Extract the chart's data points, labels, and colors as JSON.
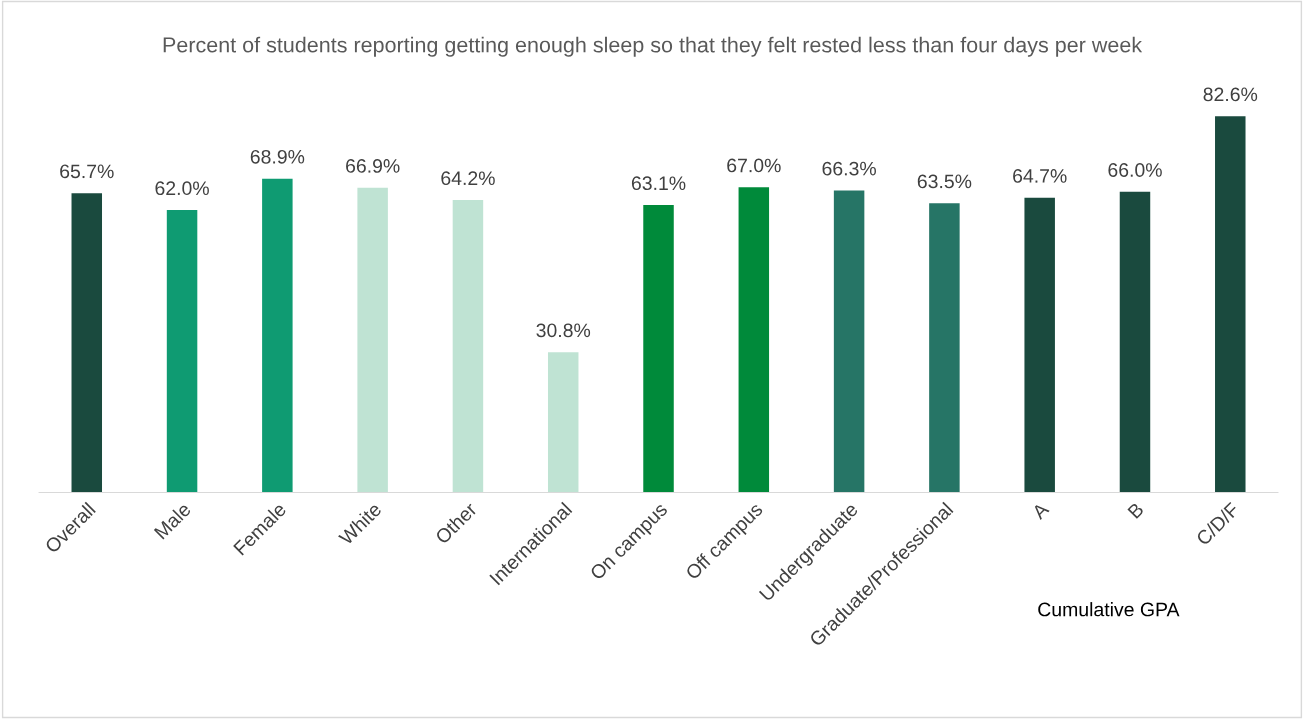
{
  "chart_data": {
    "type": "bar",
    "title": "Percent of students reporting getting enough sleep so that they felt rested less than four days per week",
    "categories": [
      "Overall",
      "Male",
      "Female",
      "White",
      "Other",
      "International",
      "On campus",
      "Off campus",
      "Undergraduate",
      "Graduate/Professional",
      "A",
      "B",
      "C/D/F"
    ],
    "values": [
      65.7,
      62.0,
      68.9,
      66.9,
      64.2,
      30.8,
      63.1,
      67.0,
      66.3,
      63.5,
      64.7,
      66.0,
      82.6
    ],
    "colors": [
      "#1a4a3e",
      "#0f9b72",
      "#0f9b72",
      "#bfe3d3",
      "#bfe3d3",
      "#bfe3d3",
      "#008a3a",
      "#008a3a",
      "#267566",
      "#267566",
      "#1a4a3e",
      "#1a4a3e",
      "#1a4a3e"
    ],
    "value_labels": [
      "65.7%",
      "62.0%",
      "68.9%",
      "66.9%",
      "64.2%",
      "30.8%",
      "63.1%",
      "67.0%",
      "66.3%",
      "63.5%",
      "64.7%",
      "66.0%",
      "82.6%"
    ],
    "annotations": [
      "Cumulative GPA"
    ],
    "grid": false,
    "legend": false
  }
}
